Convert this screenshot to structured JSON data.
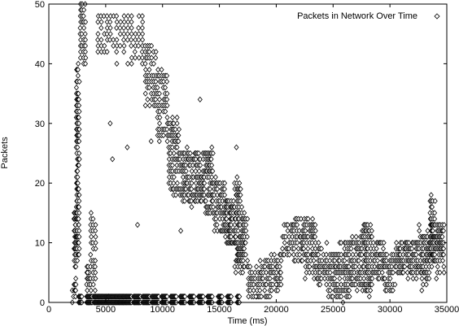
{
  "chart_data": {
    "type": "scatter",
    "title": "",
    "xlabel": "Time (ms)",
    "ylabel": "Packets",
    "xlim": [
      0,
      35000
    ],
    "ylim": [
      0,
      50
    ],
    "xticks": [
      0,
      5000,
      10000,
      15000,
      20000,
      25000,
      30000,
      35000
    ],
    "yticks": [
      0,
      10,
      20,
      30,
      40,
      50
    ],
    "grid": false,
    "marker": "diamond",
    "legend_position": "top-right",
    "series": [
      {
        "name": "Packets in Network Over Time",
        "color": "#000000",
        "bands": [
          [
            2000,
            2200,
            0,
            2,
            2
          ],
          [
            2200,
            2400,
            1,
            15,
            3
          ],
          [
            2400,
            2700,
            8,
            40,
            4
          ],
          [
            2700,
            3300,
            40,
            50,
            4
          ],
          [
            3300,
            3600,
            0,
            6,
            3
          ],
          [
            3600,
            4200,
            1,
            14,
            3
          ],
          [
            4200,
            5800,
            42,
            48,
            6
          ],
          [
            5800,
            8400,
            40,
            48,
            8
          ],
          [
            8400,
            9500,
            33,
            43,
            6
          ],
          [
            9500,
            10500,
            27,
            38,
            6
          ],
          [
            10500,
            11500,
            18,
            30,
            7
          ],
          [
            11500,
            12500,
            17,
            25,
            8
          ],
          [
            12500,
            13500,
            17,
            25,
            8
          ],
          [
            13500,
            14500,
            15,
            25,
            8
          ],
          [
            14500,
            15500,
            12,
            20,
            8
          ],
          [
            15500,
            16300,
            10,
            17,
            8
          ],
          [
            16300,
            16900,
            6,
            20,
            6
          ],
          [
            16900,
            17500,
            6,
            15,
            5
          ],
          [
            17500,
            18500,
            1,
            6,
            7
          ],
          [
            18500,
            19500,
            1,
            7,
            7
          ],
          [
            19500,
            20500,
            2,
            8,
            7
          ],
          [
            20500,
            21500,
            8,
            13,
            7
          ],
          [
            21500,
            22500,
            7,
            14,
            8
          ],
          [
            22500,
            23500,
            4,
            13,
            8
          ],
          [
            23500,
            24500,
            3,
            10,
            7
          ],
          [
            24500,
            25500,
            1,
            8,
            7
          ],
          [
            25500,
            26500,
            1,
            10,
            7
          ],
          [
            26500,
            27500,
            3,
            11,
            7
          ],
          [
            27500,
            28500,
            2,
            13,
            8
          ],
          [
            28500,
            29500,
            4,
            10,
            8
          ],
          [
            29500,
            30500,
            2,
            8,
            7
          ],
          [
            30500,
            31500,
            5,
            10,
            8
          ],
          [
            31500,
            32500,
            4,
            10,
            8
          ],
          [
            32500,
            33500,
            3,
            12,
            8
          ],
          [
            33500,
            34000,
            7,
            17,
            6
          ],
          [
            34000,
            34800,
            5,
            13,
            7
          ]
        ],
        "floor_points": [
          [
            2800,
            1,
            5
          ],
          [
            3600,
            1,
            8
          ],
          [
            4300,
            1,
            10
          ],
          [
            5000,
            1,
            10
          ],
          [
            5600,
            1,
            10
          ],
          [
            6300,
            1,
            10
          ],
          [
            7000,
            1,
            10
          ],
          [
            7800,
            1,
            10
          ],
          [
            8600,
            1,
            10
          ],
          [
            9400,
            1,
            10
          ],
          [
            10200,
            1,
            8
          ],
          [
            11000,
            1,
            8
          ],
          [
            11800,
            1,
            7
          ],
          [
            12600,
            1,
            7
          ],
          [
            13400,
            1,
            7
          ],
          [
            14200,
            1,
            7
          ],
          [
            15100,
            1,
            6
          ],
          [
            15900,
            1,
            6
          ],
          [
            16700,
            1,
            4
          ]
        ],
        "outliers": [
          [
            3400,
            5
          ],
          [
            5400,
            30
          ],
          [
            5600,
            24
          ],
          [
            6900,
            26
          ],
          [
            7800,
            13
          ],
          [
            9000,
            27
          ],
          [
            11600,
            12
          ],
          [
            13300,
            34
          ],
          [
            16500,
            26
          ],
          [
            18200,
            1
          ],
          [
            20000,
            3
          ]
        ]
      }
    ]
  }
}
